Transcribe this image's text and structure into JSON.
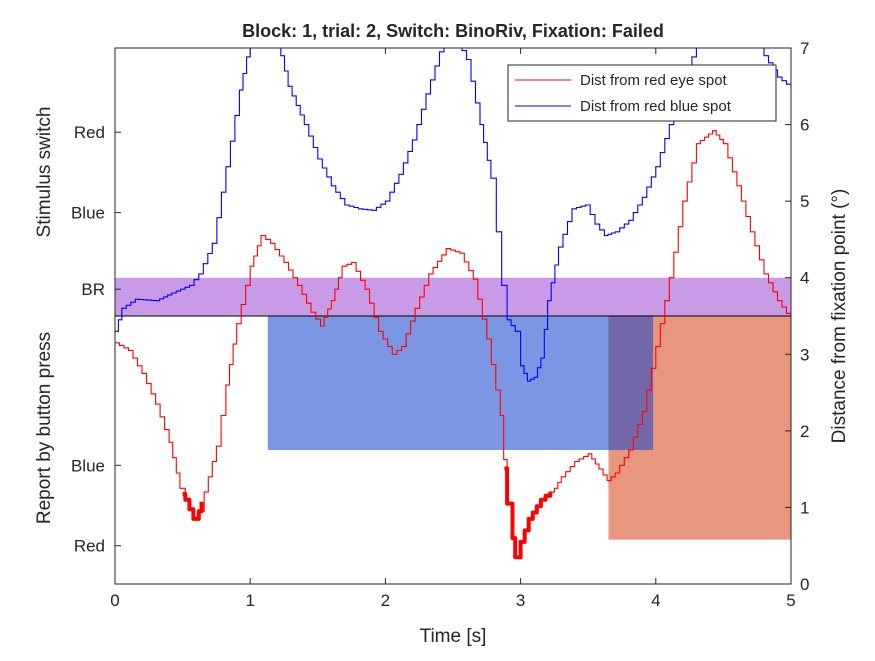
{
  "chart_data": {
    "type": "line",
    "title": "Block: 1, trial: 2, Switch: BinoRiv, Fixation: Failed",
    "xlabel": "Time [s]",
    "ylabel_left_top": "Stimulus switch",
    "ylabel_left_bottom": "Report by button press",
    "ylabel_right": "Distance from fixation point (°)",
    "xlim": [
      0,
      5
    ],
    "ylim_right": [
      0,
      7
    ],
    "x_ticks": [
      "0",
      "1",
      "2",
      "3",
      "4",
      "5"
    ],
    "y_ticks_right": [
      "0",
      "1",
      "2",
      "3",
      "4",
      "5",
      "6",
      "7"
    ],
    "y_ticks_left": [
      {
        "label": "Red",
        "value": 5.9
      },
      {
        "label": "Blue",
        "value": 4.85
      },
      {
        "label": "BR",
        "value": 3.85
      },
      {
        "label": "Blue",
        "value": 1.55
      },
      {
        "label": "Red",
        "value": 0.5
      }
    ],
    "legend": {
      "placement": "top-right",
      "entries": [
        {
          "name": "Dist from red eye spot",
          "color": "#ff0000"
        },
        {
          "name": "Dist from red blue spot",
          "color": "#0000ff"
        }
      ]
    },
    "colors": {
      "red_series": "#ff0000",
      "blue_series": "#0000ff",
      "stimulus_br_band": "#c99ae6",
      "report_blue_band": "#7b97e3",
      "report_red_band": "#e8967d",
      "overlap_band": "#7368a8"
    },
    "regions": [
      {
        "name": "stimulus-br",
        "x0": 0,
        "x1": 5,
        "y0": 3.5,
        "y1": 4.0,
        "color": "#c99ae6"
      },
      {
        "name": "report-blue",
        "x0": 1.13,
        "x1": 3.98,
        "y0": 1.75,
        "y1": 3.5,
        "color": "#7b97e3"
      },
      {
        "name": "report-red",
        "x0": 3.65,
        "x1": 5.0,
        "y0": 0.58,
        "y1": 3.5,
        "color": "#e8967d"
      },
      {
        "name": "report-overlap",
        "x0": 3.65,
        "x1": 3.98,
        "y0": 1.75,
        "y1": 3.5,
        "color": "#7368a8"
      }
    ],
    "divider_line_y": 3.5,
    "series": [
      {
        "name": "Dist from red eye spot",
        "color": "#ff0000",
        "points": [
          [
            0,
            3.15
          ],
          [
            0.1,
            3.05
          ],
          [
            0.2,
            2.75
          ],
          [
            0.3,
            2.35
          ],
          [
            0.4,
            1.85
          ],
          [
            0.48,
            1.25
          ],
          [
            0.52,
            1.1
          ],
          [
            0.58,
            0.85
          ],
          [
            0.62,
            0.95
          ],
          [
            0.66,
            1.2
          ],
          [
            0.75,
            1.8
          ],
          [
            0.82,
            2.6
          ],
          [
            0.9,
            3.4
          ],
          [
            1.0,
            4.15
          ],
          [
            1.08,
            4.55
          ],
          [
            1.15,
            4.45
          ],
          [
            1.25,
            4.2
          ],
          [
            1.35,
            3.9
          ],
          [
            1.45,
            3.55
          ],
          [
            1.52,
            3.37
          ],
          [
            1.6,
            3.7
          ],
          [
            1.68,
            4.15
          ],
          [
            1.75,
            4.2
          ],
          [
            1.85,
            3.85
          ],
          [
            1.95,
            3.3
          ],
          [
            2.05,
            3.0
          ],
          [
            2.12,
            3.1
          ],
          [
            2.22,
            3.6
          ],
          [
            2.32,
            4.05
          ],
          [
            2.45,
            4.38
          ],
          [
            2.55,
            4.32
          ],
          [
            2.65,
            3.98
          ],
          [
            2.75,
            3.2
          ],
          [
            2.85,
            2.2
          ],
          [
            2.9,
            1.05
          ],
          [
            2.94,
            0.6
          ],
          [
            2.96,
            0.35
          ],
          [
            3.0,
            0.55
          ],
          [
            3.06,
            0.85
          ],
          [
            3.15,
            1.1
          ],
          [
            3.25,
            1.25
          ],
          [
            3.3,
            1.4
          ],
          [
            3.4,
            1.6
          ],
          [
            3.5,
            1.7
          ],
          [
            3.58,
            1.5
          ],
          [
            3.64,
            1.35
          ],
          [
            3.7,
            1.45
          ],
          [
            3.8,
            1.75
          ],
          [
            3.9,
            2.25
          ],
          [
            4.0,
            3.1
          ],
          [
            4.1,
            4.0
          ],
          [
            4.2,
            5.0
          ],
          [
            4.3,
            5.75
          ],
          [
            4.42,
            5.92
          ],
          [
            4.5,
            5.75
          ],
          [
            4.6,
            5.2
          ],
          [
            4.7,
            4.6
          ],
          [
            4.8,
            4.05
          ],
          [
            4.9,
            3.7
          ],
          [
            5.0,
            3.45
          ]
        ],
        "bold_ranges": [
          [
            0.5,
            0.64
          ],
          [
            2.88,
            3.22
          ]
        ]
      },
      {
        "name": "Dist from red blue spot",
        "color": "#0000ff",
        "points": [
          [
            0,
            3.3
          ],
          [
            0.05,
            3.6
          ],
          [
            0.15,
            3.72
          ],
          [
            0.3,
            3.7
          ],
          [
            0.42,
            3.8
          ],
          [
            0.55,
            3.9
          ],
          [
            0.62,
            4.05
          ],
          [
            0.72,
            4.45
          ],
          [
            0.82,
            5.45
          ],
          [
            0.92,
            6.45
          ],
          [
            1.0,
            7.1
          ],
          [
            1.1,
            7.3
          ],
          [
            1.2,
            7.1
          ],
          [
            1.28,
            6.5
          ],
          [
            1.4,
            6.0
          ],
          [
            1.5,
            5.55
          ],
          [
            1.6,
            5.2
          ],
          [
            1.7,
            4.95
          ],
          [
            1.8,
            4.9
          ],
          [
            1.9,
            4.88
          ],
          [
            2.0,
            5.0
          ],
          [
            2.1,
            5.35
          ],
          [
            2.2,
            5.8
          ],
          [
            2.3,
            6.4
          ],
          [
            2.4,
            6.95
          ],
          [
            2.5,
            7.2
          ],
          [
            2.6,
            6.85
          ],
          [
            2.7,
            6.0
          ],
          [
            2.78,
            5.3
          ],
          [
            2.82,
            4.6
          ],
          [
            2.86,
            3.9
          ],
          [
            2.9,
            3.45
          ],
          [
            2.96,
            3.3
          ],
          [
            3.0,
            2.85
          ],
          [
            3.05,
            2.65
          ],
          [
            3.1,
            2.7
          ],
          [
            3.15,
            2.95
          ],
          [
            3.2,
            3.7
          ],
          [
            3.28,
            4.4
          ],
          [
            3.38,
            4.9
          ],
          [
            3.48,
            4.95
          ],
          [
            3.55,
            4.7
          ],
          [
            3.62,
            4.55
          ],
          [
            3.7,
            4.6
          ],
          [
            3.8,
            4.75
          ],
          [
            3.9,
            5.05
          ],
          [
            4.0,
            5.45
          ],
          [
            4.1,
            6.0
          ],
          [
            4.2,
            6.55
          ],
          [
            4.3,
            7.05
          ],
          [
            4.45,
            7.3
          ],
          [
            4.6,
            7.35
          ],
          [
            4.72,
            7.2
          ],
          [
            4.8,
            6.9
          ],
          [
            4.9,
            6.62
          ],
          [
            5.0,
            6.48
          ]
        ]
      }
    ]
  }
}
